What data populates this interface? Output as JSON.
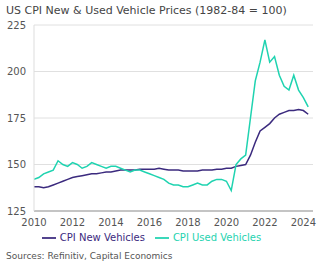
{
  "chart_data": {
    "type": "line",
    "title": "US CPI New & Used Vehicle Prices (1982-84 = 100)",
    "source": "Sources: Refinitiv, Capital Economics",
    "x": [
      2010,
      2010.25,
      2010.5,
      2010.75,
      2011,
      2011.25,
      2011.5,
      2011.75,
      2012,
      2012.25,
      2012.5,
      2012.75,
      2013,
      2013.25,
      2013.5,
      2013.75,
      2014,
      2014.25,
      2014.5,
      2014.75,
      2015,
      2015.25,
      2015.5,
      2015.75,
      2016,
      2016.25,
      2016.5,
      2016.75,
      2017,
      2017.25,
      2017.5,
      2017.75,
      2018,
      2018.25,
      2018.5,
      2018.75,
      2019,
      2019.25,
      2019.5,
      2019.75,
      2020,
      2020.25,
      2020.5,
      2020.75,
      2021,
      2021.25,
      2021.5,
      2021.75,
      2022,
      2022.25,
      2022.5,
      2022.75,
      2023,
      2023.25,
      2023.5,
      2023.75,
      2024,
      2024.25
    ],
    "series": [
      {
        "name": "CPI New Vehicles",
        "color": "#3b2a7e",
        "values": [
          138,
          138,
          137.5,
          138,
          139,
          140,
          141,
          142,
          143,
          143.5,
          144,
          144.5,
          145,
          145,
          145.5,
          146,
          146,
          146.5,
          147,
          147,
          147,
          147,
          147.5,
          147.5,
          147.5,
          147.5,
          148,
          147.5,
          147,
          147,
          147,
          146.5,
          146.5,
          146.5,
          146.5,
          147,
          147,
          147,
          147.5,
          147.5,
          148,
          148,
          149,
          149.5,
          150,
          155,
          162,
          168,
          170,
          172,
          175,
          177,
          178,
          179,
          179,
          179.5,
          179,
          177
        ]
      },
      {
        "name": "CPI Used Vehicles",
        "color": "#1fd3b0",
        "values": [
          142,
          143,
          145,
          146,
          147,
          152,
          150,
          149,
          151,
          150,
          148,
          149,
          151,
          150,
          149,
          148,
          149,
          149,
          148,
          147,
          146,
          147,
          147,
          146,
          145,
          144,
          143,
          142,
          140,
          139,
          139,
          138,
          138,
          139,
          140,
          139,
          139,
          141,
          142,
          142,
          141,
          136,
          150,
          153,
          155,
          175,
          195,
          205,
          217,
          205,
          208,
          198,
          192,
          190,
          198,
          190,
          186,
          181
        ]
      }
    ],
    "xlim": [
      2010,
      2024.5
    ],
    "xticks": [
      2010,
      2012,
      2014,
      2016,
      2018,
      2020,
      2022,
      2024
    ],
    "ylim": [
      125,
      225
    ],
    "yticks": [
      125,
      150,
      175,
      200,
      225
    ],
    "grid": true,
    "legend": "bottom"
  }
}
